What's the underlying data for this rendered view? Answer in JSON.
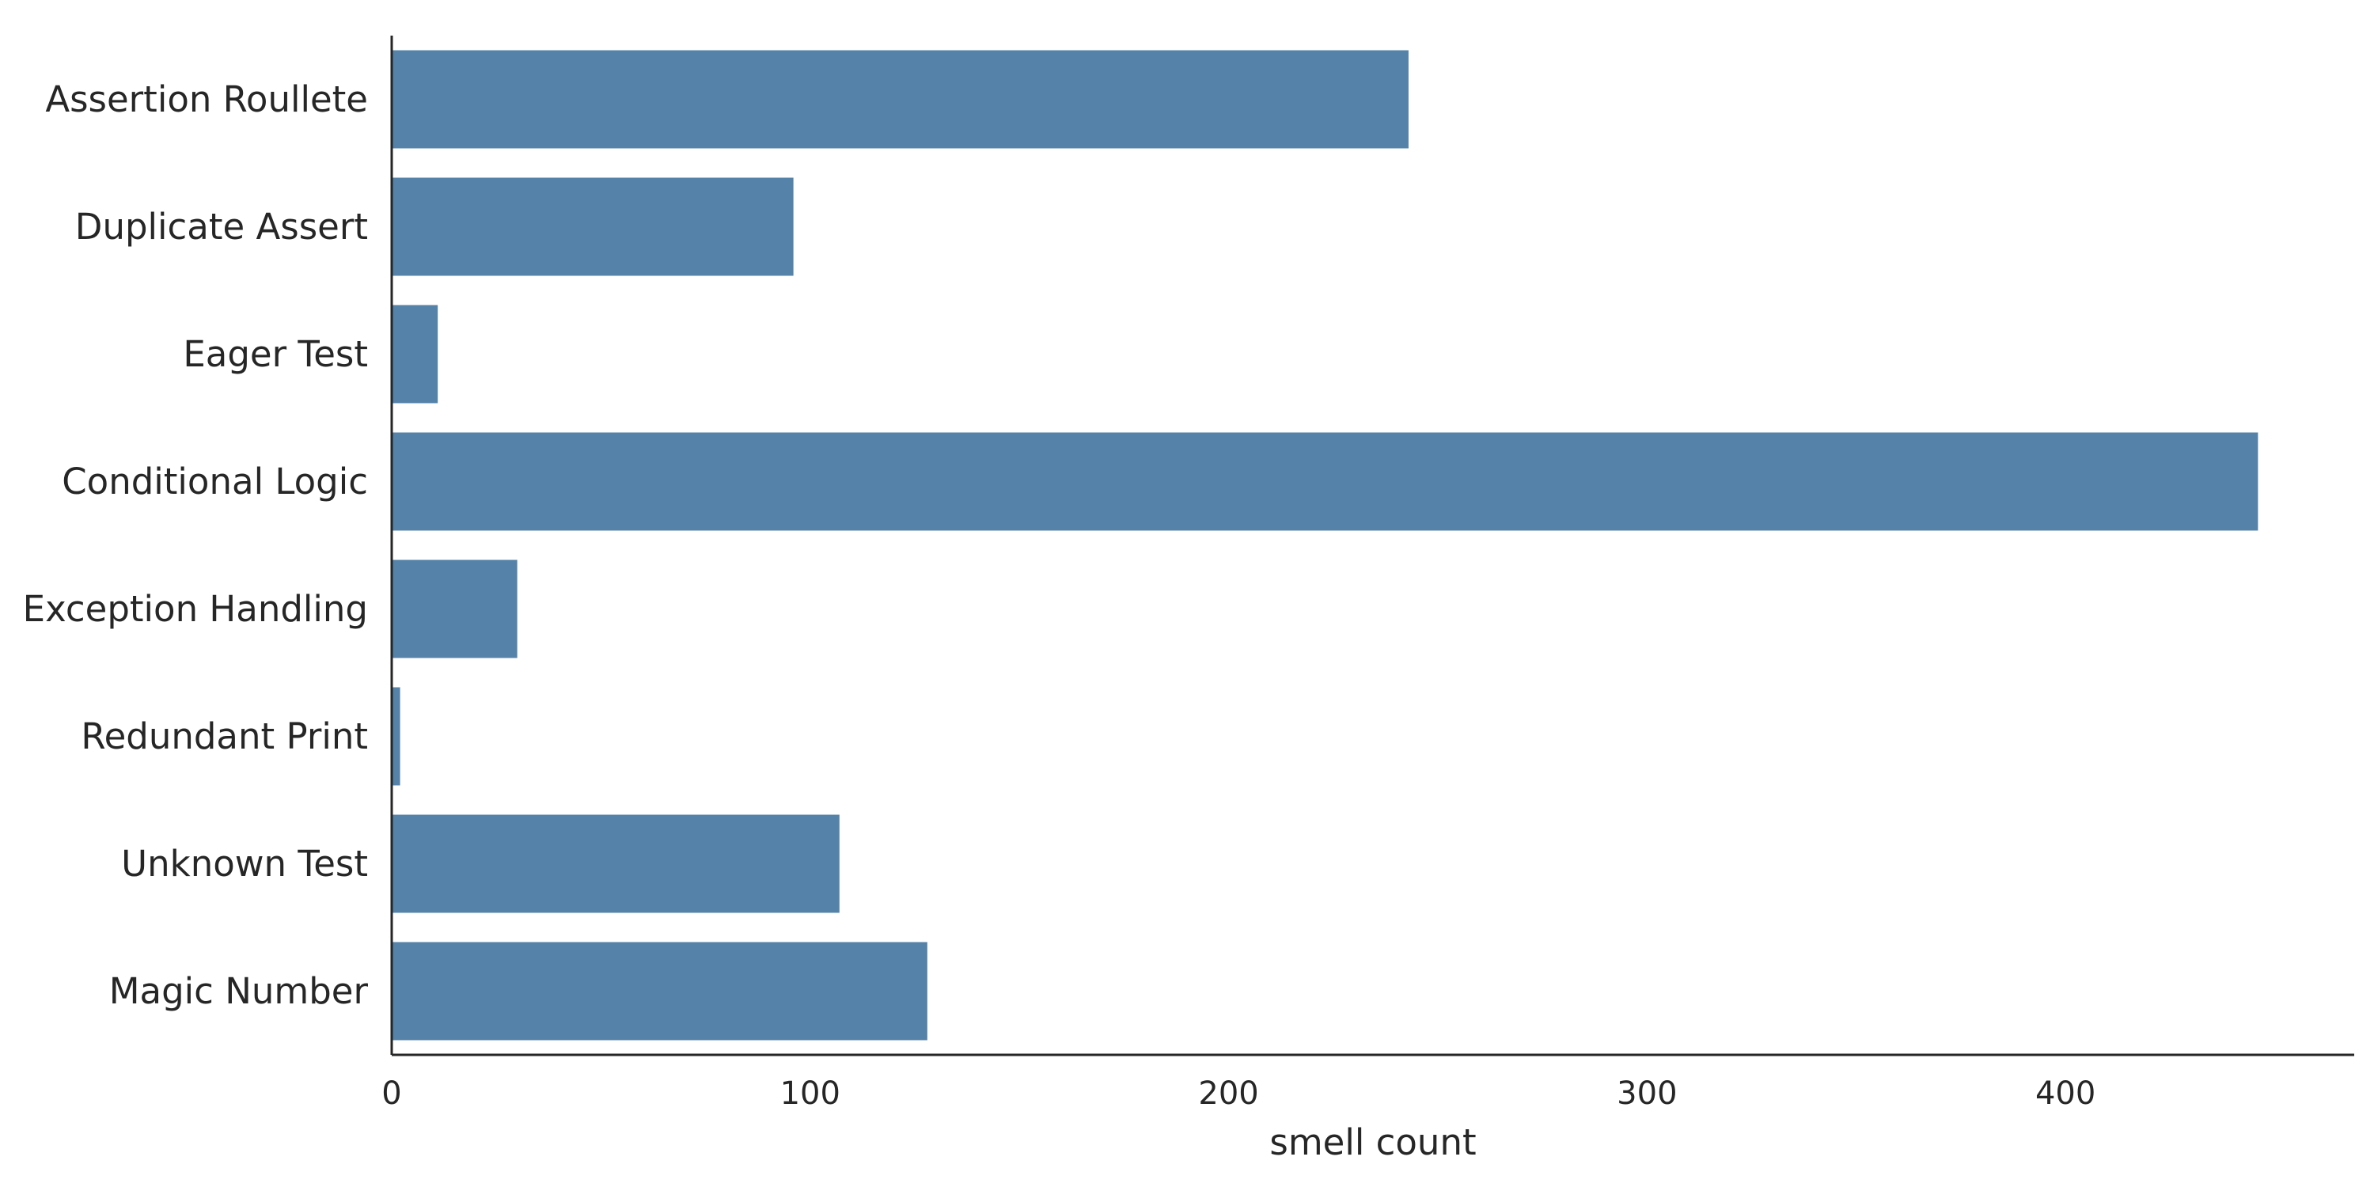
{
  "chart_data": {
    "type": "bar",
    "orientation": "horizontal",
    "title": "",
    "xlabel": "smell count",
    "ylabel": "",
    "categories": [
      "Assertion Roullete",
      "Duplicate Assert",
      "Eager Test",
      "Conditional Logic",
      "Exception Handling",
      "Redundant Print",
      "Unknown Test",
      "Magic Number"
    ],
    "values": [
      243,
      96,
      11,
      446,
      30,
      2,
      107,
      128
    ],
    "xlim": [
      0,
      469
    ],
    "xticks": [
      0,
      100,
      200,
      300,
      400
    ],
    "grid": false,
    "bar_color": "#5482a8",
    "axis_color": "#262626",
    "text_color": "#262626"
  }
}
